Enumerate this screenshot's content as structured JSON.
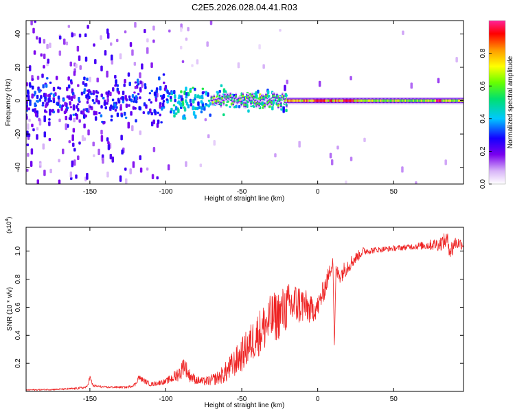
{
  "page_title": "C2E5.2026.028.04.41.R03",
  "chart_data": [
    {
      "type": "heatmap",
      "title": "C2E5.2026.028.04.41.R03",
      "xlabel": "Height of straight line (km)",
      "ylabel": "Frequency (Hz)",
      "xlim": [
        -192,
        96
      ],
      "ylim": [
        -50,
        48
      ],
      "xticks": [
        -150,
        -100,
        -50,
        0,
        50
      ],
      "xtick_labels": [
        "-150",
        "-100",
        "-50",
        "0",
        "50"
      ],
      "yticks": [
        -40,
        -20,
        0,
        20,
        40
      ],
      "ytick_labels": [
        "-40",
        "-20",
        "0",
        "20",
        "40"
      ],
      "signal_center_frequency": 0,
      "colorbar": {
        "label": "Normalized spectral amplitude",
        "range": [
          0,
          1
        ],
        "ticks": [
          0.0,
          0.2,
          0.4,
          0.6,
          0.8
        ],
        "tick_labels": [
          "0.0",
          "0.2",
          "0.4",
          "0.6",
          "0.8"
        ],
        "colormap": "rainbow (white, violet, blue, cyan, green, yellow, orange, red, magenta)"
      },
      "description": "Noisy violet scatter for heights below about -70 km; a narrow coherent line near 0 Hz strengthening from about -70 km to 96 km with red peaks near 0 to 5 km and 20 km."
    },
    {
      "type": "line",
      "xlabel": "Height of straight line (km)",
      "ylabel": "SNR (10 * v/v)",
      "y_multiplier": "(x10^4)",
      "y_multiplier_base": "(x10",
      "y_multiplier_exp": "4",
      "y_multiplier_close": ")",
      "xlim": [
        -192,
        96
      ],
      "ylim": [
        0,
        1.17
      ],
      "xticks": [
        -150,
        -100,
        -50,
        0,
        50
      ],
      "xtick_labels": [
        "-150",
        "-100",
        "-50",
        "0",
        "50"
      ],
      "yticks": [
        0.2,
        0.4,
        0.6,
        0.8,
        1.0
      ],
      "ytick_labels": [
        "0.2",
        "0.4",
        "0.6",
        "0.8",
        "1.0"
      ],
      "series": [
        {
          "name": "SNR",
          "color": "#ee2222",
          "x": [
            -192,
            -170,
            -160,
            -152,
            -150,
            -148,
            -140,
            -125,
            -120,
            -118,
            -110,
            -100,
            -95,
            -90,
            -88,
            -85,
            -80,
            -75,
            -70,
            -65,
            -60,
            -55,
            -50,
            -45,
            -40,
            -35,
            -30,
            -25,
            -20,
            -15,
            -10,
            -5,
            0,
            5,
            8,
            10,
            11,
            12,
            15,
            20,
            25,
            30,
            40,
            50,
            60,
            70,
            80,
            85,
            88,
            90,
            96
          ],
          "y": [
            0.01,
            0.015,
            0.02,
            0.03,
            0.1,
            0.04,
            0.03,
            0.03,
            0.05,
            0.1,
            0.05,
            0.07,
            0.1,
            0.14,
            0.2,
            0.12,
            0.08,
            0.07,
            0.08,
            0.1,
            0.14,
            0.2,
            0.26,
            0.33,
            0.4,
            0.46,
            0.52,
            0.55,
            0.6,
            0.62,
            0.62,
            0.58,
            0.6,
            0.75,
            0.85,
            0.95,
            0.3,
            0.85,
            0.83,
            0.9,
            0.95,
            1.0,
            1.01,
            1.02,
            1.03,
            1.04,
            1.05,
            1.08,
            1.0,
            1.06,
            1.05
          ],
          "noise_amp": [
            0.005,
            0.006,
            0.008,
            0.01,
            0.02,
            0.01,
            0.008,
            0.008,
            0.015,
            0.02,
            0.015,
            0.02,
            0.04,
            0.06,
            0.07,
            0.05,
            0.03,
            0.03,
            0.04,
            0.05,
            0.08,
            0.1,
            0.12,
            0.14,
            0.16,
            0.18,
            0.18,
            0.18,
            0.17,
            0.16,
            0.14,
            0.1,
            0.08,
            0.08,
            0.06,
            0.05,
            0.02,
            0.05,
            0.06,
            0.06,
            0.04,
            0.03,
            0.02,
            0.02,
            0.02,
            0.03,
            0.05,
            0.06,
            0.08,
            0.05,
            0.04
          ]
        }
      ]
    }
  ]
}
